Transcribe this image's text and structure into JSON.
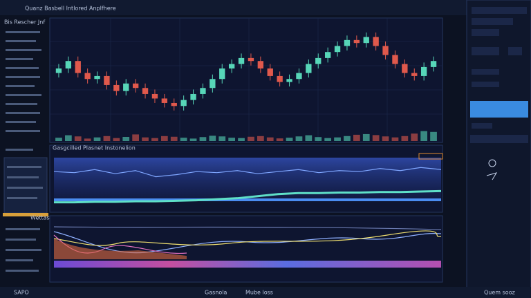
{
  "header": {
    "title": "Quanz Basbell Intlored Anplfhere",
    "sidebar_title": "Bis Rescher Jnf"
  },
  "panels": {
    "middle_title": "Gasgcilled Plasnet Instonelion",
    "bottom_title": "Wettas"
  },
  "footer": {
    "items": [
      "SAPO",
      "Gasnola",
      "Mube loss",
      "Quem sooz"
    ]
  },
  "chart_data": [
    {
      "type": "candlestick",
      "open": [
        52,
        55,
        60,
        52,
        48,
        50,
        44,
        40,
        45,
        42,
        38,
        35,
        32,
        30,
        34,
        38,
        42,
        48,
        55,
        58,
        62,
        60,
        55,
        50,
        46,
        48,
        52,
        58,
        62,
        66,
        70,
        74,
        72,
        76,
        70,
        64,
        58,
        52,
        50,
        56
      ],
      "high": [
        58,
        63,
        63,
        55,
        53,
        53,
        47,
        48,
        48,
        45,
        41,
        38,
        35,
        37,
        41,
        45,
        51,
        58,
        61,
        65,
        65,
        63,
        58,
        53,
        51,
        55,
        61,
        65,
        69,
        73,
        77,
        77,
        79,
        79,
        73,
        67,
        61,
        55,
        59,
        63
      ],
      "low": [
        49,
        52,
        49,
        45,
        45,
        41,
        37,
        37,
        39,
        35,
        32,
        29,
        27,
        27,
        31,
        35,
        39,
        45,
        52,
        55,
        57,
        52,
        47,
        43,
        43,
        45,
        49,
        55,
        59,
        63,
        67,
        69,
        69,
        67,
        61,
        55,
        49,
        47,
        47,
        53
      ],
      "close": [
        55,
        60,
        52,
        48,
        50,
        44,
        40,
        45,
        42,
        38,
        35,
        32,
        30,
        34,
        38,
        42,
        48,
        55,
        58,
        62,
        60,
        55,
        50,
        46,
        48,
        52,
        58,
        62,
        66,
        70,
        74,
        72,
        76,
        70,
        64,
        58,
        52,
        50,
        56,
        60
      ],
      "volume": [
        20,
        35,
        28,
        15,
        22,
        30,
        18,
        25,
        40,
        22,
        18,
        30,
        26,
        20,
        15,
        24,
        32,
        28,
        20,
        18,
        26,
        30,
        22,
        16,
        20,
        28,
        35,
        24,
        18,
        22,
        30,
        38,
        42,
        36,
        28,
        22,
        30,
        45,
        60,
        55
      ],
      "up_color": "#57d6b8",
      "down_color": "#e0594c",
      "ylim": [
        20,
        85
      ],
      "volume_ylim": [
        0,
        100
      ]
    },
    {
      "type": "line",
      "ylim": [
        0,
        100
      ],
      "series": [
        {
          "color": "#7fa6ff",
          "values": [
            70,
            68,
            74,
            66,
            72,
            60,
            64,
            70,
            68,
            72,
            66,
            70,
            74,
            68,
            72,
            70,
            76,
            72,
            78,
            74
          ]
        },
        {
          "color": "#5fe0c8",
          "values": [
            10,
            10,
            11,
            11,
            12,
            12,
            13,
            14,
            16,
            18,
            22,
            26,
            28,
            28,
            29,
            29,
            30,
            30,
            31,
            32
          ]
        }
      ]
    }
  ]
}
